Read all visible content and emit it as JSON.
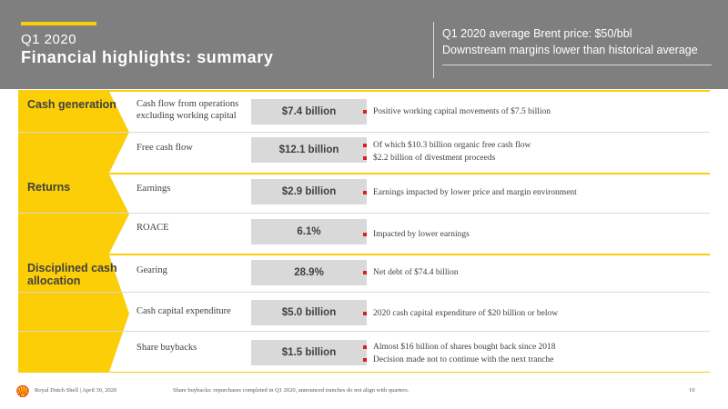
{
  "header": {
    "quarter": "Q1 2020",
    "title": "Financial highlights: summary",
    "key_line_1": "Q1 2020 average Brent price: $50/bbl",
    "key_line_2": "Downstream margins lower than historical average"
  },
  "sections": [
    {
      "label": "Cash generation",
      "rows": [
        {
          "metric": "Cash flow from operations excluding working capital",
          "value": "$7.4 billion",
          "bullets": [
            "Positive working capital movements of $7.5 billion"
          ]
        },
        {
          "metric": "Free cash flow",
          "value": "$12.1 billion",
          "bullets": [
            "Of which $10.3 billion organic free cash flow",
            "$2.2 billion of divestment proceeds"
          ]
        }
      ]
    },
    {
      "label": "Returns",
      "rows": [
        {
          "metric": "Earnings",
          "value": "$2.9 billion",
          "bullets": [
            "Earnings impacted by lower price and margin environment"
          ]
        },
        {
          "metric": "ROACE",
          "value": "6.1%",
          "bullets": [
            "Impacted by lower earnings"
          ]
        }
      ]
    },
    {
      "label": "Disciplined cash allocation",
      "rows": [
        {
          "metric": "Gearing",
          "value": "28.9%",
          "bullets": [
            "Net debt of $74.4 billion"
          ]
        },
        {
          "metric": "Cash capital expenditure",
          "value": "$5.0 billion",
          "bullets": [
            "2020 cash capital expenditure of $20 billion or below"
          ]
        },
        {
          "metric": "Share buybacks",
          "value": "$1.5 billion",
          "bullets": [
            "Almost $16 billion of shares bought back since 2018",
            "Decision made not to continue with the next tranche"
          ]
        }
      ]
    }
  ],
  "footer": {
    "company": "Royal Dutch Shell | April 30, 2020",
    "note": "Share buybacks: repurchases completed in Q1 2020, announced tranches do not align with quarters.",
    "page": "10"
  },
  "colors": {
    "brand_yellow": "#fbce07",
    "brand_red": "#dd1d21",
    "header_gray": "#7f7f7f",
    "value_box_gray": "#d9d9d9"
  }
}
